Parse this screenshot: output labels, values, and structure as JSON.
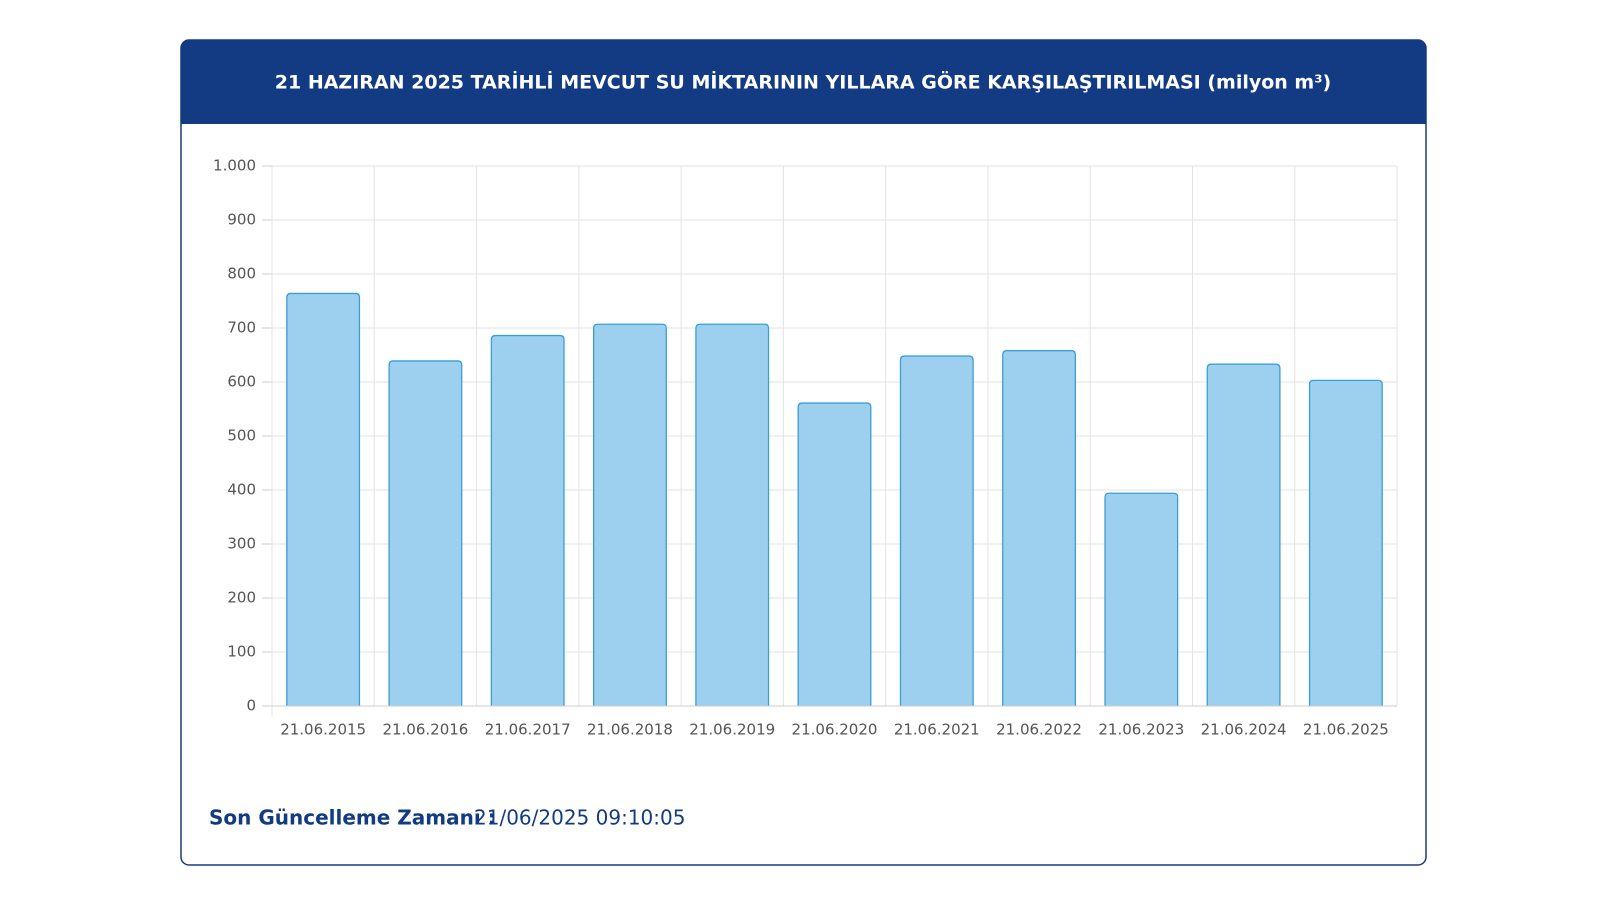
{
  "chart_data": {
    "type": "bar",
    "title": "21 HAZIRAN 2025 TARİHLİ MEVCUT SU MİKTARININ YILLARA GÖRE KARŞILAŞTIRILMASI (milyon m³)",
    "categories": [
      "21.06.2015",
      "21.06.2016",
      "21.06.2017",
      "21.06.2018",
      "21.06.2019",
      "21.06.2020",
      "21.06.2021",
      "21.06.2022",
      "21.06.2023",
      "21.06.2024",
      "21.06.2025"
    ],
    "values": [
      764,
      639,
      686,
      707,
      707,
      561,
      648,
      658,
      394,
      633,
      603
    ],
    "color": "#9dd0ee",
    "ylim": [
      0,
      1000
    ],
    "yticks": [
      0,
      100,
      200,
      300,
      400,
      500,
      600,
      700,
      800,
      900,
      {
        "value": 1000,
        "label": "1.000"
      }
    ],
    "grid": true
  },
  "footer": {
    "label": "Son Güncelleme Zamanı :",
    "time": "21/06/2025 09:10:05"
  }
}
